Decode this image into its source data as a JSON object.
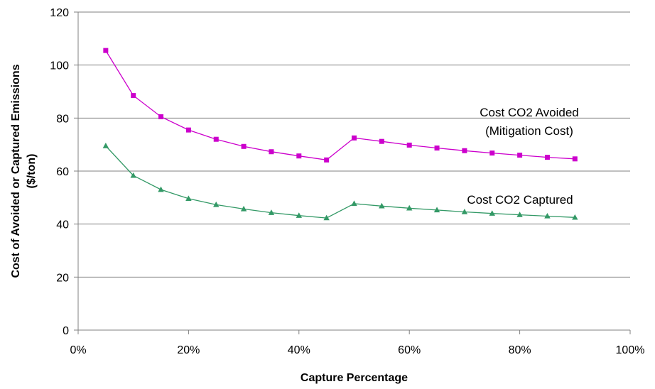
{
  "chart_data": {
    "type": "line",
    "title": "",
    "xlabel": "Capture Percentage",
    "ylabel_line1": "Cost of Avoided or Captured Emissions",
    "ylabel_line2": "($/ton)",
    "xlim": [
      0,
      100
    ],
    "ylim": [
      0,
      120
    ],
    "x_unit": "%",
    "x_ticks": [
      0,
      20,
      40,
      60,
      80,
      100
    ],
    "x_tick_labels": [
      "0%",
      "20%",
      "40%",
      "60%",
      "80%",
      "100%"
    ],
    "y_ticks": [
      0,
      20,
      40,
      60,
      80,
      100,
      120
    ],
    "y_tick_labels": [
      "0",
      "20",
      "40",
      "60",
      "80",
      "100",
      "120"
    ],
    "grid": "horizontal",
    "legend": "none (inline labels)",
    "x": [
      5,
      10,
      15,
      20,
      25,
      30,
      35,
      40,
      45,
      50,
      55,
      60,
      65,
      70,
      75,
      80,
      85,
      90
    ],
    "series": [
      {
        "key": "avoided",
        "label_lines": [
          "Cost CO2 Avoided",
          "(Mitigation Cost)"
        ],
        "color": "#cc00cc",
        "marker": "square",
        "values": [
          105.5,
          88.5,
          80.5,
          75.5,
          72.0,
          69.3,
          67.3,
          65.7,
          64.2,
          72.5,
          71.2,
          69.8,
          68.7,
          67.7,
          66.8,
          66.0,
          65.2,
          64.6
        ]
      },
      {
        "key": "captured",
        "label_lines": [
          "Cost CO2 Captured"
        ],
        "color": "#339966",
        "marker": "triangle",
        "values": [
          69.5,
          58.3,
          53.0,
          49.6,
          47.3,
          45.7,
          44.3,
          43.2,
          42.3,
          47.7,
          46.8,
          46.0,
          45.3,
          44.6,
          44.0,
          43.5,
          43.0,
          42.5
        ]
      }
    ]
  }
}
